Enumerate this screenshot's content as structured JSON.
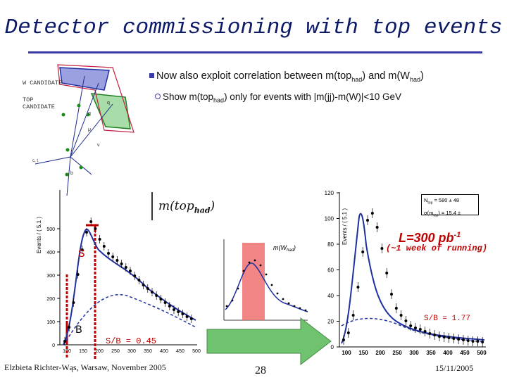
{
  "title": "Detector commissioning with top events",
  "bullets": {
    "main": "Now also exploit correlation between m(top",
    "main_sub1": "had",
    "main_mid": ") and m(W",
    "main_sub2": "had",
    "main_end": ")",
    "sub": "Show m(top",
    "sub_sub": "had",
    "sub_end": ") only for events with |m(jj)-m(W)|<10 GeV"
  },
  "event_display": {
    "w_candidate": "W CANDIDATE",
    "top_candidate_line1": "TOP",
    "top_candidate_line2": "CANDIDATE",
    "labels": [
      "q",
      "q",
      "μ",
      "b",
      "ν",
      "b",
      "c, t"
    ]
  },
  "left_plot": {
    "mtop_label": "m(top",
    "mtop_sub": "had",
    "mtop_end": ")",
    "ylabel": "Events / ( 5.1 )",
    "y_ticks": [
      "0",
      "100",
      "200",
      "300",
      "400",
      "500"
    ],
    "x_ticks": [
      "100",
      "150",
      "200",
      "250",
      "300",
      "350",
      "400",
      "450",
      "500"
    ],
    "S_label": "S",
    "B_label": "B",
    "sb": "S/B = 0.45"
  },
  "inset": {
    "label": "m(W",
    "label_sub": "had",
    "label_end": ")"
  },
  "right_plot": {
    "ylabel": "Events / ( 5.1 )",
    "y_ticks": [
      "0",
      "20",
      "40",
      "60",
      "80",
      "100",
      "120"
    ],
    "x_ticks": [
      "100",
      "150",
      "200",
      "250",
      "300",
      "350",
      "400",
      "450",
      "500"
    ],
    "stat_ntop": "N",
    "stat_ntop_sub": "top",
    "stat_ntop_val": " = 580 ± 48",
    "stat_sigma": "σ(m",
    "stat_sigma_sub": "top",
    "stat_sigma_val": ") = 15.4 ±",
    "lumi": "L=300 pb",
    "lumi_sup": "-1",
    "lumi_note": "(~1 week of running)",
    "sb": "S/B = 1.77"
  },
  "footer": {
    "author": "Elzbieta Richter-Wąs, Warsaw, November 2005",
    "page": "28",
    "date": "15/11/2005"
  },
  "colors": {
    "title": "#0d1a66",
    "accent": "#3a3aa6",
    "red": "#c00000",
    "arrow": "#6fc36f"
  }
}
